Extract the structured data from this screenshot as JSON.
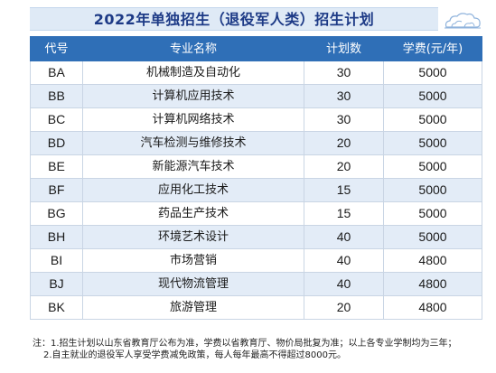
{
  "title": "2022年单独招生（退役军人类）招生计划",
  "table": {
    "headers": [
      "代号",
      "专业名称",
      "计划数",
      "学费(元/年)"
    ],
    "rows": [
      {
        "code": "BA",
        "major": "机械制造及自动化",
        "plan": "30",
        "fee": "5000"
      },
      {
        "code": "BB",
        "major": "计算机应用技术",
        "plan": "30",
        "fee": "5000"
      },
      {
        "code": "BC",
        "major": "计算机网络技术",
        "plan": "30",
        "fee": "5000"
      },
      {
        "code": "BD",
        "major": "汽车检测与维修技术",
        "plan": "20",
        "fee": "5000"
      },
      {
        "code": "BE",
        "major": "新能源汽车技术",
        "plan": "20",
        "fee": "5000"
      },
      {
        "code": "BF",
        "major": "应用化工技术",
        "plan": "15",
        "fee": "5000"
      },
      {
        "code": "BG",
        "major": "药品生产技术",
        "plan": "15",
        "fee": "5000"
      },
      {
        "code": "BH",
        "major": "环境艺术设计",
        "plan": "40",
        "fee": "5000"
      },
      {
        "code": "BI",
        "major": "市场营销",
        "plan": "40",
        "fee": "4800"
      },
      {
        "code": "BJ",
        "major": "现代物流管理",
        "plan": "40",
        "fee": "4800"
      },
      {
        "code": "BK",
        "major": "旅游管理",
        "plan": "20",
        "fee": "4800"
      }
    ]
  },
  "notes": [
    "注：1.招生计划以山东省教育厅公布为准，学费以省教育厅、物价局批复为准；以上各专业学制均为三年；",
    "2.自主就业的退役军人享受学费减免政策，每人每年最高不得超过8000元。"
  ],
  "colors": {
    "header_bg": "#2f6fb7",
    "stripe_bg": "#e3ecf7",
    "title_color": "#1d3a86",
    "title_bg": "#dfeaf6"
  },
  "icons": [
    "cloud-icon"
  ]
}
